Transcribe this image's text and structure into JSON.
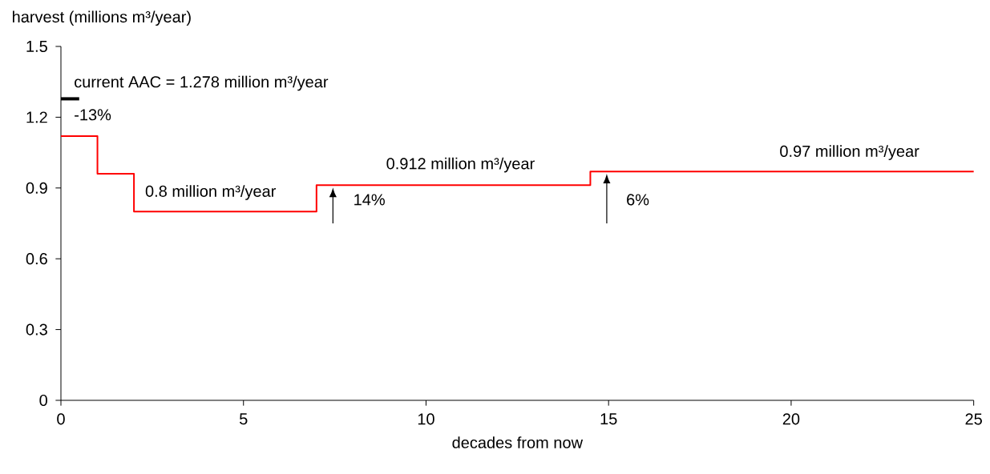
{
  "chart_data": {
    "type": "step",
    "xlabel": "decades from now",
    "ylabel": "harvest (millions m³/year)",
    "xlim": [
      0,
      25
    ],
    "xticks": [
      0,
      5,
      10,
      15,
      20,
      25
    ],
    "ylim": [
      0,
      1.5
    ],
    "yticks": [
      0,
      0.3,
      0.6,
      0.9,
      1.2,
      1.5
    ],
    "grid": false,
    "series": [
      {
        "color": "#ff0000",
        "x": [
          0,
          1,
          2,
          7,
          14.5,
          25
        ],
        "values": [
          1.12,
          0.96,
          0.8,
          0.912,
          0.97,
          0.97
        ]
      },
      {
        "type": "line",
        "color": "#000000",
        "x": [
          0,
          0.5
        ],
        "values": [
          1.278,
          1.278
        ]
      }
    ],
    "annotations": [
      "current AAC = 1.278 million m³/year",
      "-13%",
      "0.8 million m³/year",
      "14%",
      "0.912 million m³/year",
      "6%",
      "0.97 million m³/year"
    ]
  }
}
